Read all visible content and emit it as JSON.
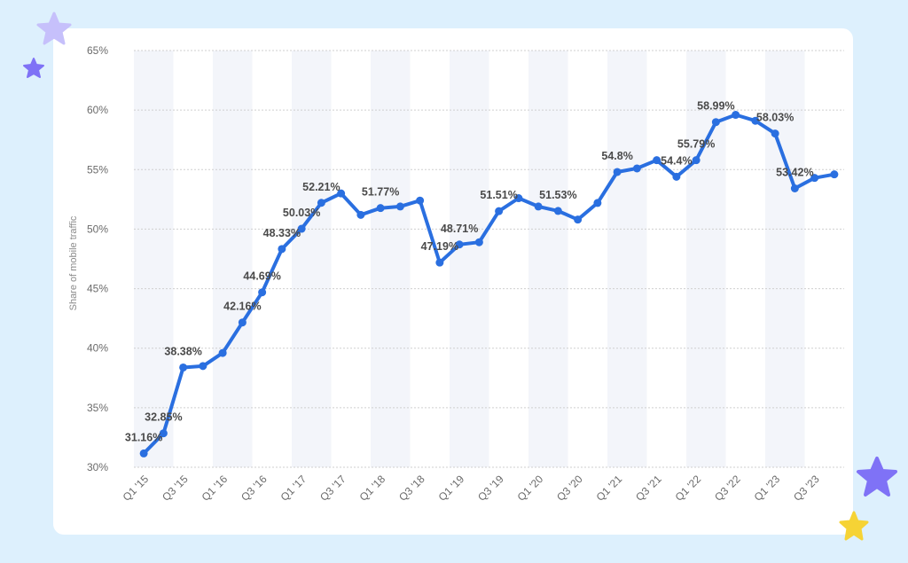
{
  "colors": {
    "background": "#ddf0fd",
    "card": "#ffffff",
    "band": "#f3f5fa",
    "line": "#2a6fe0",
    "gridline": "#cfcfcf",
    "star_purple": "#7f72f6",
    "star_lavender": "#c6c0fb",
    "star_yellow": "#f6d335"
  },
  "decorations": [
    "star-icon",
    "star-icon",
    "star-icon",
    "star-icon"
  ],
  "chart_data": {
    "type": "line",
    "title": "",
    "xlabel": "",
    "ylabel": "Share of mobile traffic",
    "ylim": [
      30,
      65
    ],
    "y_ticks": [
      "30%",
      "35%",
      "40%",
      "45%",
      "50%",
      "55%",
      "60%",
      "65%"
    ],
    "y_tick_values": [
      30,
      35,
      40,
      45,
      50,
      55,
      60,
      65
    ],
    "grid": true,
    "alternating_bands": true,
    "x": [
      "Q1 '15",
      "Q2 '15",
      "Q3 '15",
      "Q4 '15",
      "Q1 '16",
      "Q2 '16",
      "Q3 '16",
      "Q4 '16",
      "Q1 '17",
      "Q2 '17",
      "Q3 '17",
      "Q4 '17",
      "Q1 '18",
      "Q2 '18",
      "Q3 '18",
      "Q4 '18",
      "Q1 '19",
      "Q2 '19",
      "Q3 '19",
      "Q4 '19",
      "Q1 '20",
      "Q2 '20",
      "Q3 '20",
      "Q4 '20",
      "Q1 '21",
      "Q2 '21",
      "Q3 '21",
      "Q4 '21",
      "Q1 '22",
      "Q2 '22",
      "Q3 '22",
      "Q4 '22",
      "Q1 '23",
      "Q2 '23",
      "Q3 '23",
      "Q4 '23"
    ],
    "x_tick_labels": [
      "Q1 '15",
      "Q3 '15",
      "Q1 '16",
      "Q3 '16",
      "Q1 '17",
      "Q3 '17",
      "Q1 '18",
      "Q3 '18",
      "Q1 '19",
      "Q3 '19",
      "Q1 '20",
      "Q3 '20",
      "Q1 '21",
      "Q3 '21",
      "Q1 '22",
      "Q3 '22",
      "Q1 '23",
      "Q3 '23"
    ],
    "series": [
      {
        "values": [
          31.16,
          32.85,
          38.38,
          38.5,
          39.6,
          42.16,
          44.69,
          48.33,
          50.03,
          52.21,
          53.0,
          51.2,
          51.77,
          51.9,
          52.4,
          47.19,
          48.71,
          48.9,
          51.51,
          52.6,
          51.9,
          51.53,
          50.8,
          52.2,
          54.8,
          55.1,
          55.79,
          54.4,
          55.79,
          58.99,
          59.6,
          59.1,
          58.03,
          53.42,
          54.3,
          54.6
        ],
        "data_labels": {
          "0": "31.16%",
          "1": "32.85%",
          "2": "38.38%",
          "5": "42.16%",
          "6": "44.69%",
          "7": "48.33%",
          "8": "50.03%",
          "9": "52.21%",
          "12": "51.77%",
          "15": "47.19%",
          "16": "48.71%",
          "18": "51.51%",
          "21": "51.53%",
          "24": "54.8%",
          "27": "54.4%",
          "28": "55.79%",
          "29": "58.99%",
          "32": "58.03%",
          "33": "53.42%"
        }
      }
    ]
  }
}
